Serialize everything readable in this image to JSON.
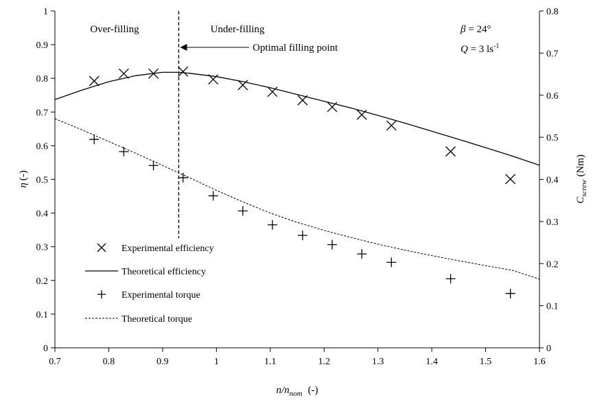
{
  "chart_data": {
    "type": "line",
    "xlabel": {
      "base": "n/n",
      "sub": "nom",
      "unit": "(-)"
    },
    "ylabel_left": {
      "symbol": "η",
      "unit": "(-)"
    },
    "ylabel_right": {
      "base": "C",
      "sub": "screw",
      "unit": "(Nm)"
    },
    "xlim": [
      0.7,
      1.6
    ],
    "ylim_left": [
      0,
      1
    ],
    "ylim_right": [
      0,
      0.8
    ],
    "xticks": [
      "0.7",
      "0.8",
      "0.9",
      "1",
      "1.1",
      "1.2",
      "1.3",
      "1.4",
      "1.5",
      "1.6"
    ],
    "yticks_left": [
      "0",
      "0.1",
      "0.2",
      "0.3",
      "0.4",
      "0.5",
      "0.6",
      "0.7",
      "0.8",
      "0.9",
      "1"
    ],
    "yticks_right": [
      "0",
      "0.1",
      "0.2",
      "0.3",
      "0.4",
      "0.5",
      "0.6",
      "0.7",
      "0.8"
    ],
    "grid": false,
    "legend_position": "bottom-left",
    "series": [
      {
        "name": "Experimental efficiency",
        "marker": "x",
        "axis": "left",
        "x": [
          0.773,
          0.828,
          0.883,
          0.938,
          0.994,
          1.049,
          1.104,
          1.16,
          1.215,
          1.27,
          1.325,
          1.435,
          1.546
        ],
        "y": [
          0.792,
          0.814,
          0.814,
          0.82,
          0.797,
          0.78,
          0.76,
          0.735,
          0.715,
          0.692,
          0.66,
          0.583,
          0.501
        ]
      },
      {
        "name": "Theoretical efficiency",
        "line": "solid",
        "axis": "left",
        "x": [
          0.7,
          0.75,
          0.8,
          0.85,
          0.9,
          0.93,
          0.95,
          1.0,
          1.05,
          1.1,
          1.15,
          1.2,
          1.25,
          1.3,
          1.35,
          1.4,
          1.45,
          1.5,
          1.55,
          1.6
        ],
        "y": [
          0.737,
          0.765,
          0.79,
          0.808,
          0.818,
          0.818,
          0.815,
          0.805,
          0.79,
          0.772,
          0.752,
          0.732,
          0.712,
          0.69,
          0.667,
          0.643,
          0.619,
          0.594,
          0.569,
          0.542
        ]
      },
      {
        "name": "Experimental torque",
        "marker": "+",
        "axis": "right",
        "x": [
          0.773,
          0.828,
          0.883,
          0.938,
          0.994,
          1.049,
          1.104,
          1.16,
          1.215,
          1.27,
          1.325,
          1.435,
          1.546
        ],
        "y": [
          0.495,
          0.466,
          0.433,
          0.404,
          0.361,
          0.325,
          0.292,
          0.267,
          0.245,
          0.223,
          0.203,
          0.164,
          0.129
        ]
      },
      {
        "name": "Theoretical torque",
        "line": "dashed",
        "axis": "right",
        "x": [
          0.7,
          0.75,
          0.8,
          0.85,
          0.9,
          0.95,
          1.0,
          1.05,
          1.1,
          1.15,
          1.2,
          1.25,
          1.3,
          1.35,
          1.4,
          1.45,
          1.5,
          1.55,
          1.6
        ],
        "y": [
          0.544,
          0.518,
          0.49,
          0.462,
          0.433,
          0.404,
          0.374,
          0.346,
          0.32,
          0.298,
          0.279,
          0.262,
          0.246,
          0.232,
          0.219,
          0.207,
          0.195,
          0.184,
          0.163
        ]
      }
    ],
    "annotations": {
      "optimal_x": 0.93,
      "over_filling": "Over-filling",
      "under_filling": "Under-filling",
      "optimal_label": "Optimal filling point",
      "beta": {
        "symbol": "β",
        "text": " = 24°"
      },
      "flow": {
        "symbol": "Q",
        "text": " = 3 ls",
        "sup": "-1"
      }
    }
  }
}
